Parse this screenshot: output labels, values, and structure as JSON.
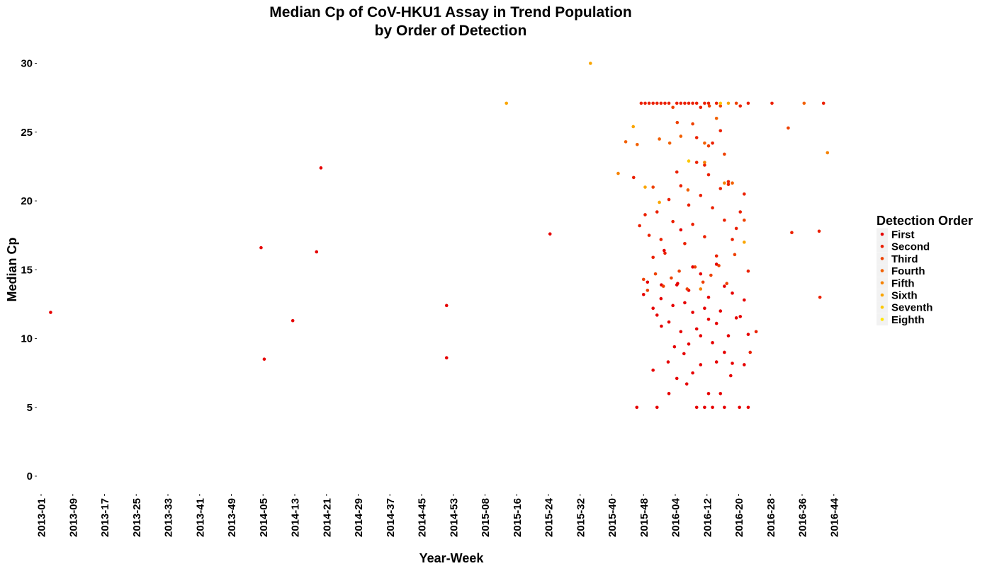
{
  "chart_data": {
    "type": "scatter",
    "title": [
      "Median Cp of CoV-HKU1 Assay in Trend Population",
      "by Order of Detection"
    ],
    "xlabel": "Year-Week",
    "ylabel": "Median Cp",
    "ylim": [
      -1.2,
      31.5
    ],
    "y_ticks": [
      0,
      5,
      10,
      15,
      20,
      25,
      30
    ],
    "x_ticks": [
      "2013-01",
      "2013-09",
      "2013-17",
      "2013-25",
      "2013-33",
      "2013-41",
      "2013-49",
      "2014-05",
      "2014-13",
      "2014-21",
      "2014-29",
      "2014-37",
      "2014-45",
      "2014-53",
      "2015-08",
      "2015-16",
      "2015-24",
      "2015-32",
      "2015-40",
      "2015-48",
      "2016-04",
      "2016-12",
      "2016-20",
      "2016-28",
      "2016-36",
      "2016-44"
    ],
    "x_tick_spacing_weeks": 8,
    "grid": false,
    "legend": {
      "title": "Detection Order",
      "placement": "right",
      "entries": [
        "First",
        "Second",
        "Third",
        "Fourth",
        "Fifth",
        "Sixth",
        "Seventh",
        "Eighth"
      ]
    },
    "series_colors": [
      "#E60000",
      "#EB2000",
      "#EE4100",
      "#F26000",
      "#F68200",
      "#FAA500",
      "#FDC800",
      "#FFE600"
    ],
    "series": [
      {
        "name": "First",
        "points": [
          [
            2.4,
            11.9
          ],
          [
            55.5,
            16.6
          ],
          [
            56.3,
            8.5
          ],
          [
            63.5,
            11.3
          ],
          [
            69.5,
            16.3
          ],
          [
            70.6,
            22.4
          ],
          [
            102.3,
            12.4
          ],
          [
            102.3,
            8.6
          ],
          [
            128.4,
            17.6
          ],
          [
            150.3,
            5
          ],
          [
            152.0,
            13.2
          ],
          [
            153.0,
            14.1
          ],
          [
            154.4,
            7.7
          ],
          [
            155.4,
            11.7
          ],
          [
            155.4,
            5
          ],
          [
            156.5,
            10.9
          ],
          [
            156.5,
            13.9
          ],
          [
            157.2,
            16.4
          ],
          [
            158.2,
            8.3
          ],
          [
            158.4,
            6.0
          ],
          [
            159.4,
            12.4
          ],
          [
            159.8,
            9.4
          ],
          [
            160.4,
            7.1
          ],
          [
            160.6,
            14.0
          ],
          [
            161.4,
            17.9
          ],
          [
            161.4,
            10.5
          ],
          [
            162.2,
            8.9
          ],
          [
            162.9,
            6.7
          ],
          [
            163.4,
            13.5
          ],
          [
            163.4,
            9.6
          ],
          [
            164.4,
            15.2
          ],
          [
            164.4,
            7.5
          ],
          [
            165.4,
            10.7
          ],
          [
            165.4,
            5.0
          ],
          [
            166.4,
            14.7
          ],
          [
            166.4,
            8.1
          ],
          [
            167.4,
            12.2
          ],
          [
            167.4,
            5.0
          ],
          [
            168.4,
            11.4
          ],
          [
            168.4,
            6.0
          ],
          [
            169.4,
            9.7
          ],
          [
            169.4,
            5.0
          ],
          [
            170.4,
            15.4
          ],
          [
            170.4,
            8.3
          ],
          [
            171.4,
            12.0
          ],
          [
            171.4,
            6.0
          ],
          [
            172.4,
            13.8
          ],
          [
            172.4,
            5.0
          ],
          [
            173.4,
            10.2
          ],
          [
            174.0,
            7.3
          ],
          [
            174.4,
            8.2
          ],
          [
            175.4,
            11.5
          ],
          [
            176.2,
            5.0
          ],
          [
            177.4,
            12.8
          ],
          [
            177.4,
            8.1
          ],
          [
            178.4,
            10.3
          ],
          [
            178.4,
            5.0
          ],
          [
            154.4,
            12.2
          ],
          [
            156.4,
            12.9
          ],
          [
            158.4,
            11.2
          ],
          [
            160.4,
            13.9
          ],
          [
            162.4,
            12.6
          ],
          [
            164.4,
            11.9
          ],
          [
            166.4,
            10.2
          ],
          [
            168.4,
            13.0
          ],
          [
            170.4,
            11.1
          ],
          [
            172.4,
            9.0
          ],
          [
            174.4,
            13.3
          ],
          [
            176.4,
            11.6
          ]
        ]
      },
      {
        "name": "Second",
        "points": [
          [
            149.5,
            21.7
          ],
          [
            151.0,
            18.2
          ],
          [
            152.4,
            19.0
          ],
          [
            153.4,
            17.5
          ],
          [
            154.4,
            15.9
          ],
          [
            155.4,
            19.2
          ],
          [
            156.4,
            17.2
          ],
          [
            157.4,
            16.2
          ],
          [
            158.4,
            20.1
          ],
          [
            159.4,
            18.5
          ],
          [
            160.4,
            22.1
          ],
          [
            161.4,
            21.1
          ],
          [
            162.4,
            16.9
          ],
          [
            163.4,
            19.7
          ],
          [
            164.4,
            18.3
          ],
          [
            165.4,
            22.8
          ],
          [
            166.4,
            20.4
          ],
          [
            167.4,
            17.4
          ],
          [
            168.4,
            21.9
          ],
          [
            169.4,
            19.5
          ],
          [
            170.4,
            16.0
          ],
          [
            171.4,
            20.9
          ],
          [
            172.4,
            18.6
          ],
          [
            173.4,
            21.4
          ],
          [
            174.4,
            17.2
          ],
          [
            175.4,
            18.0
          ],
          [
            176.4,
            19.2
          ],
          [
            177.4,
            20.5
          ],
          [
            178.4,
            14.9
          ],
          [
            178.9,
            9.0
          ],
          [
            180.4,
            10.5
          ],
          [
            165.4,
            24.6
          ],
          [
            167.4,
            22.6
          ],
          [
            169.4,
            24.2
          ],
          [
            171.4,
            25.1
          ],
          [
            173.4,
            21.2
          ],
          [
            151.4,
            27.1
          ],
          [
            152.4,
            27.1
          ],
          [
            153.4,
            27.1
          ],
          [
            154.4,
            27.1
          ],
          [
            155.4,
            27.1
          ],
          [
            156.4,
            27.1
          ],
          [
            157.4,
            27.1
          ],
          [
            158.4,
            27.1
          ],
          [
            160.4,
            27.1
          ],
          [
            161.4,
            27.1
          ],
          [
            162.4,
            27.1
          ],
          [
            163.4,
            27.1
          ],
          [
            164.4,
            27.1
          ],
          [
            165.4,
            27.1
          ],
          [
            166.4,
            26.8
          ],
          [
            167.4,
            27.1
          ],
          [
            168.4,
            27.1
          ],
          [
            170.4,
            27.1
          ],
          [
            176.4,
            26.9
          ],
          [
            178.4,
            27.1
          ],
          [
            184.4,
            27.1
          ],
          [
            197.4,
            27.1
          ],
          [
            189.4,
            17.7
          ],
          [
            196.3,
            17.8
          ],
          [
            196.5,
            13.0
          ]
        ]
      },
      {
        "name": "Third",
        "points": [
          [
            152.0,
            14.3
          ],
          [
            153.0,
            13.5
          ],
          [
            155.0,
            14.7
          ],
          [
            157.0,
            13.8
          ],
          [
            159.0,
            14.4
          ],
          [
            161.0,
            14.9
          ],
          [
            163.0,
            13.6
          ],
          [
            165.0,
            15.2
          ],
          [
            167.0,
            14.1
          ],
          [
            169.0,
            14.6
          ],
          [
            171.0,
            15.3
          ],
          [
            173.0,
            14.0
          ],
          [
            175.0,
            16.1
          ],
          [
            177.4,
            18.6
          ],
          [
            160.5,
            25.7
          ],
          [
            164.4,
            25.6
          ],
          [
            168.4,
            24.0
          ],
          [
            172.4,
            23.4
          ],
          [
            159.4,
            26.8
          ],
          [
            168.6,
            26.9
          ],
          [
            171.4,
            26.9
          ],
          [
            175.4,
            27.1
          ],
          [
            188.5,
            25.3
          ],
          [
            154.4,
            21.0
          ]
        ]
      },
      {
        "name": "Fourth",
        "points": [
          [
            147.5,
            24.3
          ],
          [
            150.4,
            24.1
          ],
          [
            156.0,
            24.5
          ],
          [
            158.6,
            24.2
          ],
          [
            161.4,
            24.7
          ],
          [
            167.4,
            24.2
          ],
          [
            163.2,
            20.8
          ],
          [
            170.4,
            26.0
          ],
          [
            174.4,
            21.3
          ],
          [
            192.5,
            27.1
          ]
        ]
      },
      {
        "name": "Fifth",
        "points": [
          [
            145.6,
            22.0
          ],
          [
            167.4,
            22.8
          ],
          [
            172.4,
            21.3
          ],
          [
            198.4,
            23.5
          ],
          [
            166.4,
            13.6
          ]
        ]
      },
      {
        "name": "Sixth",
        "points": [
          [
            117.4,
            27.1
          ],
          [
            138.6,
            30.0
          ],
          [
            149.4,
            25.4
          ],
          [
            152.4,
            21.0
          ],
          [
            156.0,
            19.9
          ],
          [
            173.4,
            27.1
          ],
          [
            177.4,
            17.0
          ]
        ]
      },
      {
        "name": "Seventh",
        "points": [
          [
            163.4,
            22.9
          ],
          [
            171.4,
            27.1
          ]
        ]
      },
      {
        "name": "Eighth",
        "points": []
      }
    ]
  }
}
